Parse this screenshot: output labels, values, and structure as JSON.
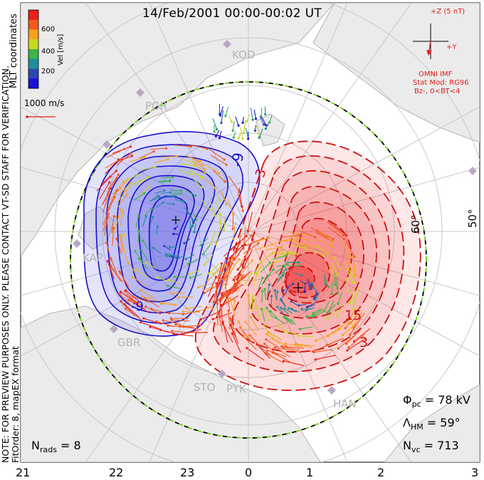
{
  "title": "14/Feb/2001 00:00-00:02 UT",
  "colorbar": {
    "label": "Vel [m/s]",
    "ticks": [
      "600",
      "400",
      "200"
    ],
    "colors": [
      "#e8201a",
      "#f25a1e",
      "#f7a21e",
      "#c9d81e",
      "#39b54a",
      "#1f8e9b",
      "#2a49b3",
      "#1a10d8"
    ]
  },
  "coords_label": "MLT coordinates",
  "scale_vector_label": "1000 m/s",
  "side_note_1": "NOTE: FOR PREVIEW PURPOSES ONLY. PLEASE CONTACT VT-SD STAFF FOR VERIFICATION.",
  "side_note_2": "FitOrder: 8, mapEX format",
  "imf": {
    "z_label": "+Z (5 nT)",
    "y_label": "+Y",
    "source": "OMNI IMF",
    "model": "Stat Mod: RG96",
    "condition": "Bz-, 0<BT<4"
  },
  "stations": [
    {
      "name": "KOD"
    },
    {
      "name": "PGR"
    },
    {
      "name": "KAP"
    },
    {
      "name": "GBR"
    },
    {
      "name": "STO"
    },
    {
      "name": "PYK"
    },
    {
      "name": "HAN"
    }
  ],
  "latitude_labels": [
    "60°",
    "50°"
  ],
  "contour_labels": {
    "neg": [
      "-9",
      "-9"
    ],
    "pos": [
      "15",
      "3",
      "3"
    ]
  },
  "stats": {
    "phi_pc_sym": "Φ",
    "phi_pc_sub": "pc",
    "phi_pc_value": " = 78 kV",
    "lambda_sym": "Λ",
    "lambda_sub": "HM",
    "lambda_value": " = 59°",
    "nvc_sym": "N",
    "nvc_sub": "vc",
    "nvc_value": " = 713",
    "nrads_sym": "N",
    "nrads_sub": "rads",
    "nrads_value": " = 8"
  },
  "mlt_ticks": [
    "21",
    "22",
    "23",
    "0",
    "1",
    "2",
    "3"
  ],
  "colors": {
    "negative_fill": "#6a6ae6",
    "positive_fill": "#f03a3a",
    "negative_line": "#1a10c8",
    "positive_line": "#d01010",
    "grid": "#c8c8c8",
    "land": "#e6e6e6",
    "hmb_dash": "#7ed321"
  }
}
